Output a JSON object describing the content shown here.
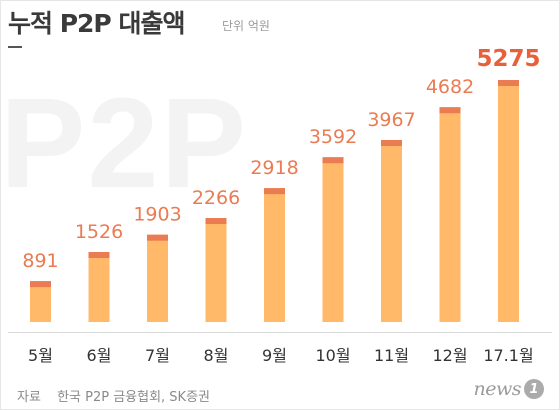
{
  "header": {
    "title": "누적 P2P 대출액",
    "unit": "단위  억원"
  },
  "watermark": "P2P",
  "chart_data": {
    "type": "bar",
    "categories": [
      "5월",
      "6월",
      "7월",
      "8월",
      "9월",
      "10월",
      "11월",
      "12월",
      "17.1월"
    ],
    "values": [
      891,
      1526,
      1903,
      2266,
      2918,
      3592,
      3967,
      4682,
      5275
    ],
    "title": "누적 P2P 대출액",
    "ylabel": "",
    "unit": "억원",
    "highlight_index": 8,
    "colors": {
      "bar": "#ffb968",
      "bar_cap": "#ea7b52",
      "label": "#ea7b52",
      "highlight_label": "#e8603a",
      "category": "#333333"
    }
  },
  "footer": {
    "source_label": "자료",
    "source_text": "한국 P2P 금융협회, SK증권",
    "logo_text": "news",
    "logo_badge": "1"
  }
}
